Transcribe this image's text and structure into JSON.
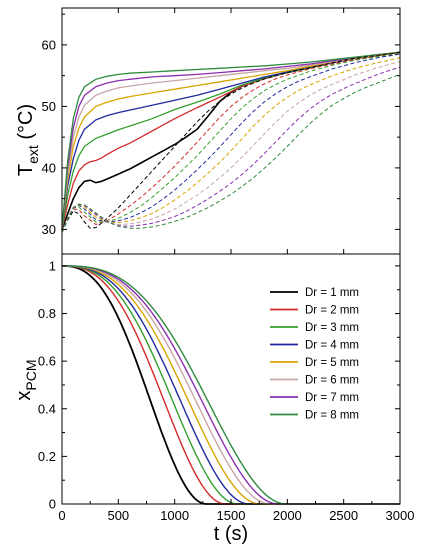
{
  "chart_data": [
    {
      "type": "line",
      "panel": "top",
      "ylabel_main": "T",
      "ylabel_sub": "ext",
      "ylabel_units": "(°C)",
      "xlim": [
        0,
        3000
      ],
      "ylim": [
        26,
        66
      ],
      "yticks": [
        30,
        40,
        50,
        60
      ],
      "xticks": [
        0,
        500,
        1000,
        1500,
        2000,
        2500,
        3000
      ],
      "show_xtick_labels": false,
      "note": "solid lines = same Dr as legend; dashed lines = same Dr as legend",
      "series": [
        {
          "name": "Dr = 1 mm",
          "style": "solid",
          "x": [
            0,
            50,
            100,
            150,
            200,
            250,
            300,
            350,
            400,
            500,
            600,
            700,
            800,
            900,
            1000,
            1100,
            1200,
            1300,
            1400,
            1500,
            1600,
            1700,
            1800,
            1900,
            2000,
            2200,
            2400,
            2600,
            2800,
            3000
          ],
          "y": [
            30,
            32.5,
            35,
            36.8,
            37.8,
            38,
            37.6,
            37.8,
            38.2,
            39,
            39.8,
            40.8,
            41.8,
            42.8,
            43.8,
            45,
            46.3,
            48.5,
            50.8,
            52.3,
            53.3,
            54,
            54.6,
            55.1,
            55.5,
            56.3,
            57.1,
            57.8,
            58.3,
            58.8
          ]
        },
        {
          "name": "Dr = 2 mm",
          "style": "solid",
          "x": [
            0,
            50,
            100,
            150,
            200,
            250,
            300,
            350,
            400,
            500,
            600,
            700,
            800,
            900,
            1000,
            1200,
            1400,
            1600,
            1800,
            2000,
            2200,
            2400,
            2600,
            2800,
            3000
          ],
          "y": [
            30,
            34,
            37.5,
            39.5,
            40.5,
            41,
            41.2,
            41.6,
            42.2,
            43.2,
            44,
            45,
            46,
            47,
            48,
            49.8,
            51.5,
            53.3,
            54.5,
            55.5,
            56.3,
            57.1,
            57.8,
            58.3,
            58.8
          ]
        },
        {
          "name": "Dr = 3 mm",
          "style": "solid",
          "x": [
            0,
            50,
            100,
            150,
            200,
            300,
            400,
            500,
            600,
            800,
            1000,
            1200,
            1400,
            1600,
            1800,
            2000,
            2200,
            2400,
            2600,
            2800,
            3000
          ],
          "y": [
            30,
            35.5,
            39.5,
            42,
            43.5,
            44.8,
            45.5,
            46.2,
            46.8,
            48,
            49.5,
            50.7,
            52,
            53.5,
            54.6,
            55.5,
            56.3,
            57.1,
            57.8,
            58.3,
            58.8
          ]
        },
        {
          "name": "Dr = 4 mm",
          "style": "solid",
          "x": [
            0,
            50,
            100,
            150,
            200,
            300,
            400,
            500,
            600,
            800,
            1000,
            1200,
            1400,
            1600,
            1800,
            2000,
            2200,
            2400,
            2600,
            2800,
            3000
          ],
          "y": [
            30,
            37,
            41.5,
            44.5,
            46.3,
            47.8,
            48.5,
            49,
            49.4,
            50.2,
            51,
            51.8,
            52.8,
            53.8,
            54.8,
            55.6,
            56.4,
            57.1,
            57.8,
            58.3,
            58.8
          ]
        },
        {
          "name": "Dr = 5 mm",
          "style": "solid",
          "x": [
            0,
            50,
            100,
            150,
            200,
            300,
            400,
            500,
            600,
            800,
            1000,
            1200,
            1400,
            1600,
            1800,
            2000,
            2200,
            2400,
            2600,
            2800,
            3000
          ],
          "y": [
            30,
            38,
            43.5,
            46.5,
            48.3,
            50,
            50.7,
            51.2,
            51.6,
            52.2,
            52.8,
            53.4,
            54,
            54.6,
            55.2,
            55.8,
            56.5,
            57.2,
            57.8,
            58.3,
            58.8
          ]
        },
        {
          "name": "Dr = 6 mm",
          "style": "solid",
          "x": [
            0,
            50,
            100,
            150,
            200,
            300,
            400,
            500,
            600,
            800,
            1000,
            1200,
            1400,
            1600,
            1800,
            2000,
            2200,
            2400,
            2600,
            2800,
            3000
          ],
          "y": [
            30,
            39,
            45,
            48.3,
            50.2,
            51.8,
            52.5,
            53,
            53.3,
            53.8,
            54.2,
            54.6,
            55,
            55.4,
            55.8,
            56.2,
            56.7,
            57.3,
            57.9,
            58.4,
            58.8
          ]
        },
        {
          "name": "Dr = 7 mm",
          "style": "solid",
          "x": [
            0,
            50,
            100,
            150,
            200,
            300,
            400,
            500,
            600,
            800,
            1000,
            1200,
            1400,
            1600,
            1800,
            2000,
            2200,
            2400,
            2600,
            2800,
            3000
          ],
          "y": [
            30,
            40,
            46.5,
            50,
            51.8,
            53.2,
            53.8,
            54.2,
            54.4,
            54.8,
            55,
            55.2,
            55.5,
            55.8,
            56.1,
            56.5,
            56.9,
            57.4,
            57.9,
            58.4,
            58.8
          ]
        },
        {
          "name": "Dr = 8 mm",
          "style": "solid",
          "x": [
            0,
            50,
            100,
            150,
            200,
            300,
            400,
            500,
            600,
            800,
            1000,
            1200,
            1400,
            1600,
            1800,
            2000,
            2200,
            2400,
            2600,
            2800,
            3000
          ],
          "y": [
            30,
            41,
            48,
            51.5,
            53.2,
            54.4,
            54.9,
            55.2,
            55.4,
            55.6,
            55.8,
            56,
            56.2,
            56.4,
            56.6,
            56.9,
            57.2,
            57.6,
            58,
            58.4,
            58.8
          ]
        },
        {
          "name": "Dr = 1 mm",
          "style": "dashed",
          "x": [
            0,
            50,
            100,
            150,
            200,
            250,
            300,
            350,
            400,
            500,
            600,
            700,
            800,
            900,
            1000,
            1100,
            1200,
            1300,
            1400,
            1500,
            1600,
            1700,
            1800,
            1900,
            2000,
            2200,
            2400,
            2600,
            2800,
            3000
          ],
          "y": [
            29.5,
            31.5,
            33,
            32.5,
            31.2,
            30.2,
            30.3,
            31,
            31.8,
            33.5,
            35.5,
            37.5,
            39.5,
            41.5,
            43.5,
            45.5,
            47.5,
            49.3,
            50.8,
            52,
            53,
            53.8,
            54.5,
            55,
            55.5,
            56.3,
            57.1,
            57.8,
            58.3,
            58.8
          ]
        },
        {
          "name": "Dr = 2 mm",
          "style": "dashed",
          "x": [
            0,
            50,
            100,
            150,
            200,
            300,
            400,
            500,
            600,
            700,
            800,
            900,
            1000,
            1100,
            1200,
            1300,
            1400,
            1500,
            1600,
            1700,
            1800,
            1900,
            2000,
            2200,
            2400,
            2600,
            2800,
            3000
          ],
          "y": [
            29.5,
            31.8,
            33.3,
            33.2,
            32.2,
            30.8,
            31.4,
            32.5,
            33.8,
            35.2,
            36.8,
            38.5,
            40.3,
            42.2,
            44.2,
            46.2,
            48.2,
            50,
            51.5,
            52.7,
            53.7,
            54.5,
            55.1,
            56.1,
            56.9,
            57.6,
            58.2,
            58.7
          ]
        },
        {
          "name": "Dr = 3 mm",
          "style": "dashed",
          "x": [
            0,
            50,
            100,
            150,
            200,
            300,
            400,
            500,
            600,
            700,
            800,
            900,
            1000,
            1100,
            1200,
            1300,
            1400,
            1500,
            1600,
            1700,
            1800,
            1900,
            2000,
            2200,
            2400,
            2600,
            2800,
            3000
          ],
          "y": [
            29.5,
            31.8,
            33.5,
            33.6,
            32.8,
            31.2,
            31.2,
            31.8,
            32.7,
            33.8,
            35.2,
            36.8,
            38.4,
            40.2,
            42,
            44,
            46,
            48,
            49.8,
            51.3,
            52.6,
            53.6,
            54.4,
            55.7,
            56.7,
            57.5,
            58.1,
            58.6
          ]
        },
        {
          "name": "Dr = 4 mm",
          "style": "dashed",
          "x": [
            0,
            50,
            100,
            150,
            200,
            300,
            400,
            500,
            600,
            700,
            800,
            900,
            1000,
            1100,
            1200,
            1300,
            1400,
            1500,
            1600,
            1700,
            1800,
            1900,
            2000,
            2100,
            2200,
            2400,
            2600,
            2800,
            3000
          ],
          "y": [
            29.5,
            31.8,
            33.6,
            33.9,
            33.3,
            31.6,
            31.2,
            31.4,
            31.9,
            32.7,
            33.7,
            35,
            36.4,
            38,
            39.7,
            41.5,
            43.4,
            45.4,
            47.4,
            49.2,
            50.8,
            52.1,
            53.2,
            54.1,
            54.8,
            56.1,
            57.1,
            57.9,
            58.5
          ]
        },
        {
          "name": "Dr = 5 mm",
          "style": "dashed",
          "x": [
            0,
            50,
            100,
            150,
            200,
            300,
            400,
            500,
            600,
            700,
            800,
            900,
            1000,
            1100,
            1200,
            1300,
            1400,
            1500,
            1600,
            1700,
            1800,
            1900,
            2000,
            2100,
            2200,
            2400,
            2600,
            2800,
            3000
          ],
          "y": [
            29.5,
            31.8,
            33.6,
            34,
            33.6,
            32,
            31.2,
            31.1,
            31.4,
            31.9,
            32.6,
            33.6,
            34.8,
            36.1,
            37.6,
            39.2,
            40.9,
            42.8,
            44.8,
            46.8,
            48.6,
            50.2,
            51.5,
            52.6,
            53.5,
            55,
            56.2,
            57.1,
            57.9
          ]
        },
        {
          "name": "Dr = 6 mm",
          "style": "dashed",
          "x": [
            0,
            50,
            100,
            150,
            200,
            300,
            400,
            500,
            600,
            700,
            800,
            900,
            1000,
            1100,
            1200,
            1300,
            1400,
            1500,
            1600,
            1700,
            1800,
            1900,
            2000,
            2100,
            2200,
            2300,
            2400,
            2600,
            2800,
            3000
          ],
          "y": [
            29.5,
            31.7,
            33.6,
            34.1,
            33.8,
            32.3,
            31.2,
            30.8,
            30.9,
            31.2,
            31.7,
            32.4,
            33.3,
            34.4,
            35.6,
            36.9,
            38.4,
            40,
            41.8,
            43.7,
            45.6,
            47.5,
            49.2,
            50.6,
            51.8,
            52.8,
            53.6,
            55.1,
            56.3,
            57.3
          ]
        },
        {
          "name": "Dr = 7 mm",
          "style": "dashed",
          "x": [
            0,
            50,
            100,
            150,
            200,
            300,
            400,
            500,
            600,
            700,
            800,
            900,
            1000,
            1100,
            1200,
            1300,
            1400,
            1500,
            1600,
            1700,
            1800,
            1900,
            2000,
            2100,
            2200,
            2300,
            2400,
            2500,
            2600,
            2800,
            3000
          ],
          "y": [
            29.5,
            31.7,
            33.5,
            34.1,
            33.9,
            32.5,
            31.2,
            30.6,
            30.5,
            30.7,
            31,
            31.5,
            32.1,
            32.9,
            33.9,
            35,
            36.2,
            37.5,
            39,
            40.6,
            42.4,
            44.3,
            46.2,
            48,
            49.6,
            50.9,
            52,
            52.9,
            53.7,
            55.2,
            56.4
          ]
        },
        {
          "name": "Dr = 8 mm",
          "style": "dashed",
          "x": [
            0,
            50,
            100,
            150,
            200,
            300,
            400,
            500,
            600,
            700,
            800,
            900,
            1000,
            1100,
            1200,
            1300,
            1400,
            1500,
            1600,
            1700,
            1800,
            1900,
            2000,
            2100,
            2200,
            2300,
            2400,
            2500,
            2600,
            2700,
            2800,
            3000
          ],
          "y": [
            29.5,
            31.6,
            33.4,
            34.1,
            34,
            32.7,
            31.3,
            30.5,
            30.2,
            30.2,
            30.4,
            30.8,
            31.3,
            31.9,
            32.7,
            33.6,
            34.6,
            35.7,
            37,
            38.4,
            40,
            41.7,
            43.5,
            45.4,
            47.2,
            48.8,
            50.2,
            51.3,
            52.3,
            53.1,
            53.8,
            55.2
          ]
        }
      ]
    },
    {
      "type": "line",
      "panel": "bottom",
      "xlabel": "t  (s)",
      "ylabel_main": "x",
      "ylabel_sub": "PCM",
      "xlim": [
        0,
        3000
      ],
      "ylim": [
        0,
        1.05
      ],
      "yticks": [
        0,
        0.2,
        0.4,
        0.6,
        0.8,
        1
      ],
      "ytick_labels": [
        "0",
        "0.2",
        "0.4",
        "0.6",
        "0.8",
        "1"
      ],
      "xticks": [
        0,
        500,
        1000,
        1500,
        2000,
        2500,
        3000
      ],
      "xtick_labels": [
        "0",
        "500",
        "1000",
        "1500",
        "2000",
        "2500",
        "3000"
      ],
      "legend_position": "right",
      "series": [
        {
          "name": "Dr = 1 mm",
          "end": 1280,
          "shape": 1.25
        },
        {
          "name": "Dr = 2 mm",
          "end": 1450,
          "shape": 1.3
        },
        {
          "name": "Dr = 3 mm",
          "end": 1560,
          "shape": 1.32
        },
        {
          "name": "Dr = 4 mm",
          "end": 1660,
          "shape": 1.34
        },
        {
          "name": "Dr = 5 mm",
          "end": 1760,
          "shape": 1.36
        },
        {
          "name": "Dr = 6 mm",
          "end": 1850,
          "shape": 1.38
        },
        {
          "name": "Dr = 7 mm",
          "end": 1920,
          "shape": 1.4
        },
        {
          "name": "Dr = 8 mm",
          "end": 1990,
          "shape": 1.42
        }
      ]
    }
  ],
  "colors": [
    "#000000",
    "#d42a2a",
    "#33a02c",
    "#1f2aa0",
    "#d9a400",
    "#c8a6a6",
    "#8a2fb0",
    "#2e8b3e"
  ]
}
